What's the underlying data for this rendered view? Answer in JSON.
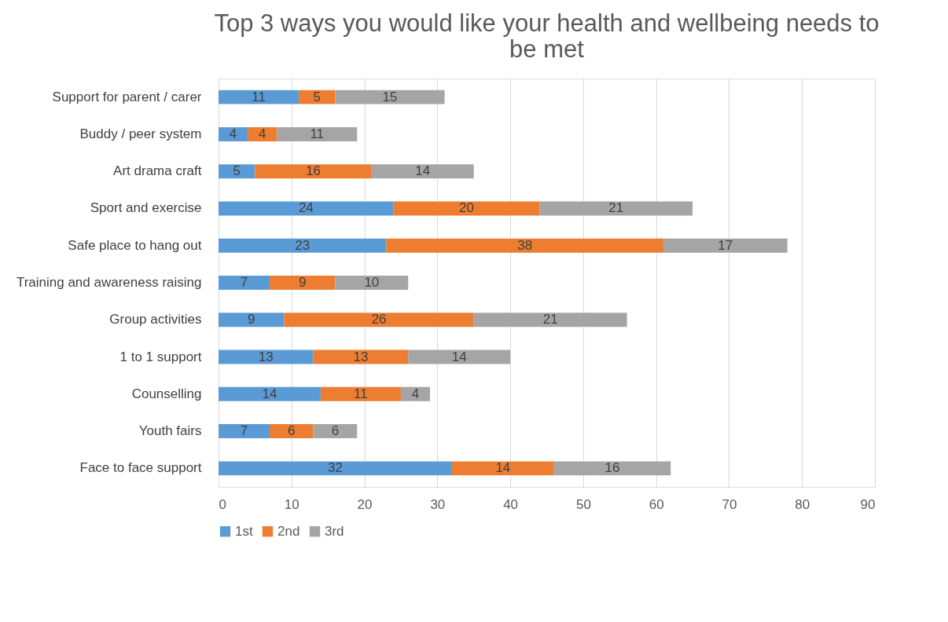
{
  "chart_data": {
    "type": "bar",
    "orientation": "horizontal",
    "stacked": true,
    "title": "Top 3 ways you would like your health and wellbeing needs to be met",
    "categories": [
      "Support for parent / carer",
      "Buddy / peer system",
      "Art drama craft",
      "Sport and exercise",
      "Safe place to hang out",
      "Training and awareness raising",
      "Group activities",
      "1 to 1 support",
      "Counselling",
      "Youth fairs",
      "Face to face support"
    ],
    "series": [
      {
        "name": "1st",
        "color": "#5b9bd5",
        "values": [
          11,
          4,
          5,
          24,
          23,
          7,
          9,
          13,
          14,
          7,
          32
        ]
      },
      {
        "name": "2nd",
        "color": "#ed7d31",
        "values": [
          5,
          4,
          16,
          20,
          38,
          9,
          26,
          13,
          11,
          6,
          14
        ]
      },
      {
        "name": "3rd",
        "color": "#a5a5a5",
        "values": [
          15,
          11,
          14,
          21,
          17,
          10,
          21,
          14,
          4,
          6,
          16
        ]
      }
    ],
    "xlim": [
      0,
      90
    ],
    "xticks": [
      0,
      10,
      20,
      30,
      40,
      50,
      60,
      70,
      80,
      90
    ],
    "grid": "x",
    "legend": "bottom",
    "data_labels": true
  }
}
